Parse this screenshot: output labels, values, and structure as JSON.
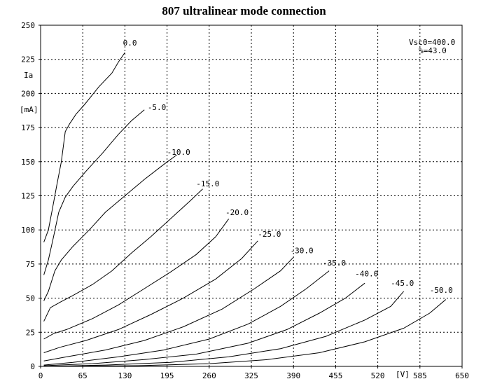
{
  "chart_data": {
    "type": "line",
    "title": "807 ultralinear mode connection",
    "ylabel": "Ia",
    "yunit": "[mA]",
    "xunit": "[V]",
    "xlim": [
      0,
      650
    ],
    "ylim": [
      0,
      250
    ],
    "xticks": [
      0,
      65,
      130,
      195,
      260,
      325,
      390,
      455,
      520,
      585,
      650
    ],
    "yticks": [
      0,
      25,
      50,
      75,
      100,
      125,
      150,
      175,
      200,
      225,
      250
    ],
    "grid": true,
    "annotations": [
      "Vsc0=400.0",
      "%=43.0"
    ],
    "series": [
      {
        "name": "0.0",
        "label_at": [
          127,
          235
        ],
        "points": [
          [
            5,
            91
          ],
          [
            12,
            100
          ],
          [
            18,
            115
          ],
          [
            25,
            133
          ],
          [
            32,
            150
          ],
          [
            38,
            172
          ],
          [
            45,
            178
          ],
          [
            55,
            185
          ],
          [
            68,
            192
          ],
          [
            90,
            205
          ],
          [
            110,
            215
          ],
          [
            120,
            223
          ],
          [
            130,
            230
          ]
        ]
      },
      {
        "name": "-5.0",
        "label_at": [
          165,
          188
        ],
        "points": [
          [
            5,
            67
          ],
          [
            12,
            78
          ],
          [
            20,
            95
          ],
          [
            28,
            113
          ],
          [
            38,
            124
          ],
          [
            50,
            132
          ],
          [
            70,
            143
          ],
          [
            95,
            156
          ],
          [
            120,
            170
          ],
          [
            140,
            180
          ],
          [
            160,
            188
          ]
        ]
      },
      {
        "name": "-10.0",
        "label_at": [
          195,
          155
        ],
        "points": [
          [
            5,
            48
          ],
          [
            12,
            55
          ],
          [
            22,
            70
          ],
          [
            32,
            78
          ],
          [
            50,
            88
          ],
          [
            75,
            100
          ],
          [
            100,
            113
          ],
          [
            130,
            125
          ],
          [
            160,
            137
          ],
          [
            190,
            148
          ],
          [
            210,
            155
          ]
        ]
      },
      {
        "name": "-15.0",
        "label_at": [
          240,
          132
        ],
        "points": [
          [
            5,
            33
          ],
          [
            15,
            43
          ],
          [
            30,
            47
          ],
          [
            50,
            52
          ],
          [
            80,
            60
          ],
          [
            110,
            70
          ],
          [
            140,
            83
          ],
          [
            170,
            95
          ],
          [
            200,
            108
          ],
          [
            230,
            121
          ],
          [
            250,
            130
          ]
        ]
      },
      {
        "name": "-20.0",
        "label_at": [
          285,
          111
        ],
        "points": [
          [
            5,
            20
          ],
          [
            20,
            24
          ],
          [
            40,
            27
          ],
          [
            80,
            35
          ],
          [
            120,
            45
          ],
          [
            160,
            57
          ],
          [
            200,
            69
          ],
          [
            240,
            82
          ],
          [
            270,
            95
          ],
          [
            290,
            108
          ]
        ]
      },
      {
        "name": "-25.0",
        "label_at": [
          335,
          95
        ],
        "points": [
          [
            5,
            10
          ],
          [
            30,
            14
          ],
          [
            70,
            19
          ],
          [
            120,
            27
          ],
          [
            170,
            38
          ],
          [
            220,
            50
          ],
          [
            270,
            64
          ],
          [
            310,
            79
          ],
          [
            335,
            92
          ]
        ]
      },
      {
        "name": "-30.0",
        "label_at": [
          385,
          83
        ],
        "points": [
          [
            5,
            4
          ],
          [
            40,
            7
          ],
          [
            100,
            12
          ],
          [
            160,
            19
          ],
          [
            220,
            29
          ],
          [
            280,
            42
          ],
          [
            330,
            57
          ],
          [
            370,
            70
          ],
          [
            390,
            80
          ]
        ]
      },
      {
        "name": "-35.0",
        "label_at": [
          435,
          74
        ],
        "points": [
          [
            5,
            1
          ],
          [
            50,
            3
          ],
          [
            120,
            7
          ],
          [
            190,
            12
          ],
          [
            260,
            20
          ],
          [
            320,
            31
          ],
          [
            370,
            44
          ],
          [
            410,
            57
          ],
          [
            445,
            70
          ]
        ]
      },
      {
        "name": "-40.0",
        "label_at": [
          485,
          66
        ],
        "points": [
          [
            5,
            0.5
          ],
          [
            80,
            2
          ],
          [
            160,
            5
          ],
          [
            240,
            9
          ],
          [
            320,
            17
          ],
          [
            380,
            27
          ],
          [
            430,
            39
          ],
          [
            470,
            50
          ],
          [
            500,
            61
          ]
        ]
      },
      {
        "name": "-45.0",
        "label_at": [
          540,
          59
        ],
        "points": [
          [
            5,
            0
          ],
          [
            100,
            1
          ],
          [
            200,
            3
          ],
          [
            290,
            7
          ],
          [
            370,
            13
          ],
          [
            440,
            22
          ],
          [
            500,
            34
          ],
          [
            540,
            44
          ],
          [
            560,
            55
          ]
        ]
      },
      {
        "name": "-50.0",
        "label_at": [
          600,
          54
        ],
        "points": [
          [
            5,
            0
          ],
          [
            150,
            0.5
          ],
          [
            260,
            2
          ],
          [
            350,
            5
          ],
          [
            430,
            10
          ],
          [
            500,
            18
          ],
          [
            560,
            28
          ],
          [
            600,
            39
          ],
          [
            625,
            49
          ]
        ]
      }
    ]
  }
}
